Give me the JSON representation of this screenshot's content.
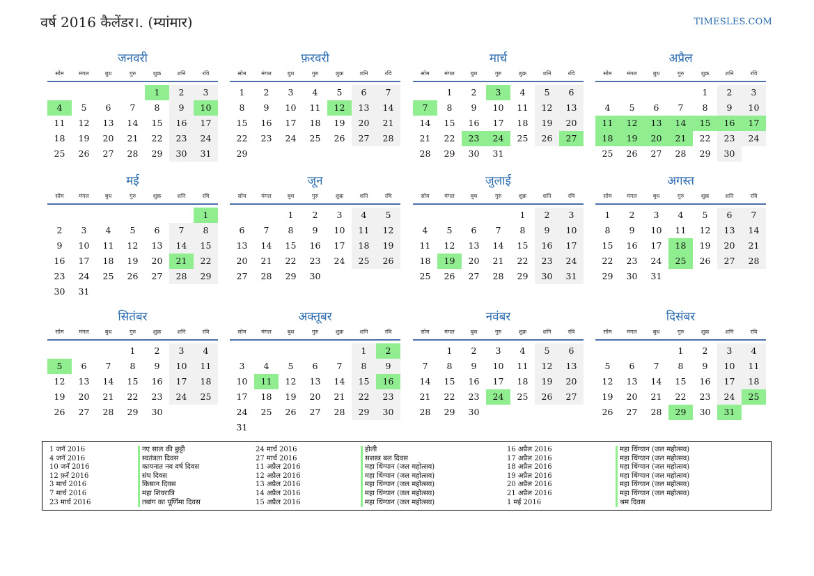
{
  "header": {
    "title": "वर्ष 2016 कैलेंडर।. (म्यांमार)",
    "site": "TIMESLES.COM"
  },
  "weekday_labels": [
    "सोम",
    "मंगल",
    "बुध",
    "गुरु",
    "शुक्र",
    "शनि",
    "रवि"
  ],
  "colors": {
    "accent": "#2b6cb0",
    "holiday": "#90ee90",
    "weekend": "#f1f1f1"
  },
  "months": [
    {
      "name": "जनवरी",
      "start": 4,
      "days": 31,
      "holidays": [
        1,
        4,
        10
      ]
    },
    {
      "name": "फ़रवरी",
      "start": 0,
      "days": 29,
      "holidays": [
        12
      ]
    },
    {
      "name": "मार्च",
      "start": 1,
      "days": 31,
      "holidays": [
        3,
        7,
        23,
        24,
        27
      ]
    },
    {
      "name": "अप्रैल",
      "start": 4,
      "days": 30,
      "holidays": [
        11,
        12,
        13,
        14,
        15,
        16,
        17,
        18,
        19,
        20,
        21
      ]
    },
    {
      "name": "मई",
      "start": 6,
      "days": 31,
      "holidays": [
        1,
        21
      ]
    },
    {
      "name": "जून",
      "start": 2,
      "days": 30,
      "holidays": []
    },
    {
      "name": "जुलाई",
      "start": 4,
      "days": 31,
      "holidays": [
        19
      ]
    },
    {
      "name": "अगस्त",
      "start": 0,
      "days": 31,
      "holidays": [
        18,
        25
      ]
    },
    {
      "name": "सितंबर",
      "start": 3,
      "days": 30,
      "holidays": [
        5
      ]
    },
    {
      "name": "अक्तूबर",
      "start": 5,
      "days": 31,
      "holidays": [
        2,
        11,
        16
      ]
    },
    {
      "name": "नवंबर",
      "start": 1,
      "days": 30,
      "holidays": [
        24
      ]
    },
    {
      "name": "दिसंबर",
      "start": 3,
      "days": 31,
      "holidays": [
        25,
        29,
        31
      ]
    }
  ],
  "holiday_list": [
    {
      "date": "1 जनॅ 2016",
      "name": "नए साल की छुट्टी"
    },
    {
      "date": "4 जनॅ 2016",
      "name": "स्वतंत्रता दिवस"
    },
    {
      "date": "10 जनॅ 2016",
      "name": "कायनात नव वर्ष दिवस"
    },
    {
      "date": "12 फ़रॅ 2016",
      "name": "संघ दिवस"
    },
    {
      "date": "3 मार्च 2016",
      "name": "किसान दिवस"
    },
    {
      "date": "7 मार्च 2016",
      "name": "महा शिवरात्रि"
    },
    {
      "date": "23 मार्च 2016",
      "name": "तबांग का पूर्णिमा दिवस"
    },
    {
      "date": "24 मार्च 2016",
      "name": "होली"
    },
    {
      "date": "27 मार्च 2016",
      "name": "सशस्त्र बल दिवस"
    },
    {
      "date": "11 अप्रैल 2016",
      "name": "महा थिंग्यान (जल महोत्सव)"
    },
    {
      "date": "12 अप्रैल 2016",
      "name": "महा थिंग्यान (जल महोत्सव)"
    },
    {
      "date": "13 अप्रैल 2016",
      "name": "महा थिंग्यान (जल महोत्सव)"
    },
    {
      "date": "14 अप्रैल 2016",
      "name": "महा थिंग्यान (जल महोत्सव)"
    },
    {
      "date": "15 अप्रैल 2016",
      "name": "महा थिंग्यान (जल महोत्सव)"
    },
    {
      "date": "16 अप्रैल 2016",
      "name": "महा थिंग्यान (जल महोत्सव)"
    },
    {
      "date": "17 अप्रैल 2016",
      "name": "महा थिंग्यान (जल महोत्सव)"
    },
    {
      "date": "18 अप्रैल 2016",
      "name": "महा थिंग्यान (जल महोत्सव)"
    },
    {
      "date": "19 अप्रैल 2016",
      "name": "महा थिंग्यान (जल महोत्सव)"
    },
    {
      "date": "20 अप्रैल 2016",
      "name": "महा थिंग्यान (जल महोत्सव)"
    },
    {
      "date": "21 अप्रैल 2016",
      "name": "महा थिंग्यान (जल महोत्सव)"
    },
    {
      "date": "1 मई 2016",
      "name": "श्रम दिवस"
    }
  ]
}
